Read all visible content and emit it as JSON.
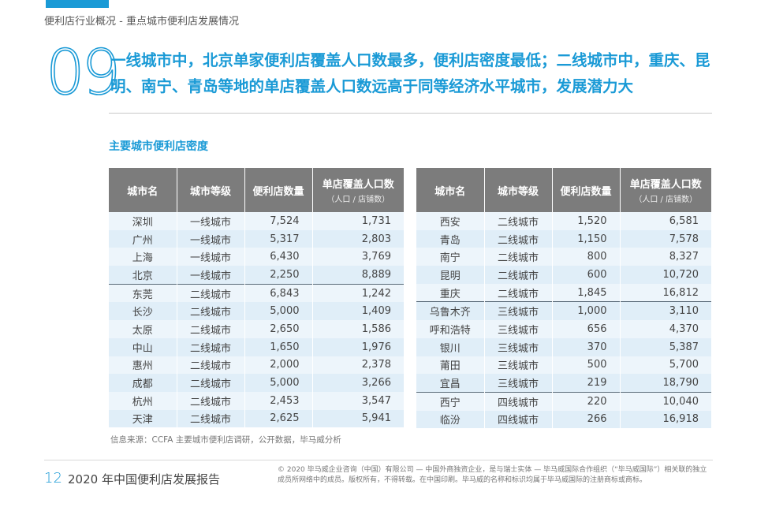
{
  "breadcrumb": "便利店行业概况 - 重点城市便利店发展情况",
  "section_number": "09",
  "headline": "一线城市中，北京单家便利店覆盖人口数最多，便利店密度最低；二线城市中，重庆、昆明、南宁、青岛等地的单店覆盖人口数远高于同等经济水平城市，发展潜力大",
  "table_title": "主要城市便利店密度",
  "columns": {
    "city": "城市名",
    "tier": "城市等级",
    "stores": "便利店数量",
    "coverage": "单店覆盖人口数",
    "coverage_unit": "（人口 / 店铺数）"
  },
  "left_table": [
    {
      "city": "深圳",
      "tier": "一线城市",
      "stores": "7,524",
      "coverage": "1,731"
    },
    {
      "city": "广州",
      "tier": "一线城市",
      "stores": "5,317",
      "coverage": "2,803"
    },
    {
      "city": "上海",
      "tier": "一线城市",
      "stores": "6,430",
      "coverage": "3,769"
    },
    {
      "city": "北京",
      "tier": "一线城市",
      "stores": "2,250",
      "coverage": "8,889"
    },
    {
      "city": "东莞",
      "tier": "二线城市",
      "stores": "6,843",
      "coverage": "1,242"
    },
    {
      "city": "长沙",
      "tier": "二线城市",
      "stores": "5,000",
      "coverage": "1,409"
    },
    {
      "city": "太原",
      "tier": "二线城市",
      "stores": "2,650",
      "coverage": "1,586"
    },
    {
      "city": "中山",
      "tier": "二线城市",
      "stores": "1,650",
      "coverage": "1,976"
    },
    {
      "city": "惠州",
      "tier": "二线城市",
      "stores": "2,000",
      "coverage": "2,378"
    },
    {
      "city": "成都",
      "tier": "二线城市",
      "stores": "5,000",
      "coverage": "3,266"
    },
    {
      "city": "杭州",
      "tier": "二线城市",
      "stores": "2,453",
      "coverage": "3,547"
    },
    {
      "city": "天津",
      "tier": "二线城市",
      "stores": "2,625",
      "coverage": "5,941"
    }
  ],
  "right_table": [
    {
      "city": "西安",
      "tier": "二线城市",
      "stores": "1,520",
      "coverage": "6,581"
    },
    {
      "city": "青岛",
      "tier": "二线城市",
      "stores": "1,150",
      "coverage": "7,578"
    },
    {
      "city": "南宁",
      "tier": "二线城市",
      "stores": "800",
      "coverage": "8,327"
    },
    {
      "city": "昆明",
      "tier": "二线城市",
      "stores": "600",
      "coverage": "10,720"
    },
    {
      "city": "重庆",
      "tier": "二线城市",
      "stores": "1,845",
      "coverage": "16,812"
    },
    {
      "city": "乌鲁木齐",
      "tier": "三线城市",
      "stores": "1,000",
      "coverage": "3,110"
    },
    {
      "city": "呼和浩特",
      "tier": "三线城市",
      "stores": "656",
      "coverage": "4,370"
    },
    {
      "city": "银川",
      "tier": "三线城市",
      "stores": "370",
      "coverage": "5,387"
    },
    {
      "city": "莆田",
      "tier": "三线城市",
      "stores": "500",
      "coverage": "5,700"
    },
    {
      "city": "宜昌",
      "tier": "三线城市",
      "stores": "219",
      "coverage": "18,790"
    },
    {
      "city": "西宁",
      "tier": "四线城市",
      "stores": "220",
      "coverage": "10,040"
    },
    {
      "city": "临汾",
      "tier": "四线城市",
      "stores": "266",
      "coverage": "16,918"
    }
  ],
  "source": "信息来源：CCFA 主要城市便利店调研，公开数据，毕马威分析",
  "footer": {
    "page_number": "12",
    "report_title": "2020 年中国便利店发展报告",
    "copyright": "© 2020 毕马威企业咨询（中国）有限公司 — 中国外商独资企业，是与瑞士实体 — 毕马威国际合作组织（“毕马威国际”）相关联的独立成员所网络中的成员。版权所有，不得转载。在中国印刷。毕马威的名称和标识均属于毕马威国际的注册商标或商标。"
  },
  "colors": {
    "accent": "#1a9ad6",
    "header_bg": "#7c7c7c",
    "row_light": "#edf5fb",
    "row_dark": "#e0eef8"
  }
}
